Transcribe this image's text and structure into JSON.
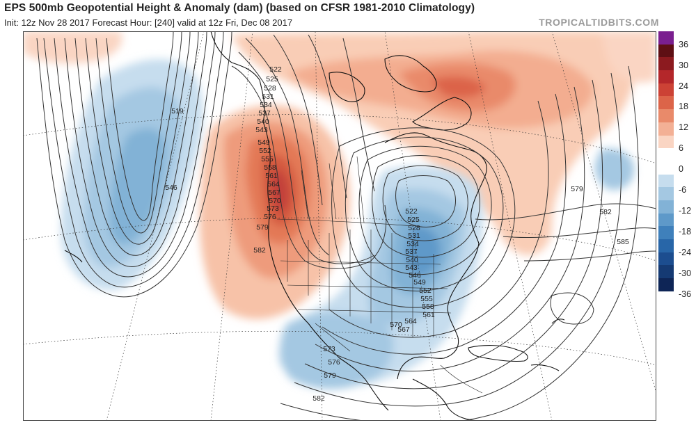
{
  "header": {
    "title": "EPS 500mb Geopotential Height & Anomaly (dam) (based on CFSR 1981-2010 Climatology)",
    "subtitle": "Init: 12z Nov 28 2017   Forecast Hour: [240]   valid at 12z Fri, Dec 08 2017",
    "brand": "TROPICALTIDBITS.COM"
  },
  "colorbar": {
    "colors": [
      "#7a1f8f",
      "#5e0f14",
      "#8c1a1f",
      "#b4272a",
      "#cc4235",
      "#dc6449",
      "#e98a6a",
      "#f3b095",
      "#fad5c3",
      "#ffffff",
      "#ffffff",
      "#c6ddee",
      "#a4c8e2",
      "#82b2d6",
      "#5e99c9",
      "#3f80bb",
      "#2866a8",
      "#1c4d8f",
      "#153a73",
      "#0e2556"
    ],
    "labels": [
      "36",
      "30",
      "24",
      "18",
      "12",
      "6",
      "0",
      "-6",
      "-12",
      "-18",
      "-24",
      "-30",
      "-36"
    ]
  },
  "map": {
    "contour_labels": [
      "522",
      "525",
      "528",
      "531",
      "534",
      "537",
      "540",
      "543",
      "549",
      "552",
      "555",
      "558",
      "561",
      "564",
      "567",
      "570",
      "573",
      "576",
      "579",
      "582",
      "519",
      "546",
      "522",
      "525",
      "528",
      "531",
      "534",
      "537",
      "540",
      "543",
      "546",
      "549",
      "552",
      "555",
      "558",
      "561",
      "564",
      "567",
      "570",
      "573",
      "576",
      "579",
      "582",
      "579",
      "582",
      "585"
    ]
  }
}
